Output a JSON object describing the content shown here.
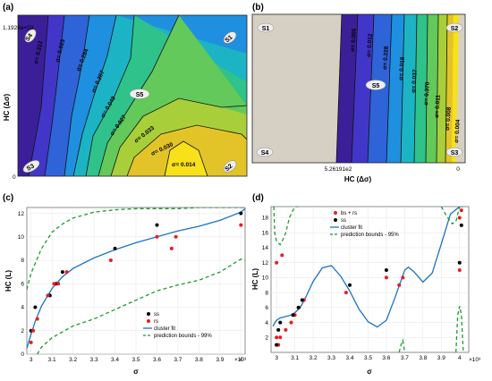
{
  "chart_data": [
    {
      "panel": "(a)",
      "type": "contour",
      "xlabel": "",
      "ylabel": "HC (Δσ)",
      "y_ticks": [
        "1.1924e+03",
        "0"
      ],
      "contour_labels": [
        "σ= 0.312",
        "σ= 0.023",
        "σ= 0.284",
        "σ= 0.207",
        "σ= 0.049",
        "σ= 0.027",
        "σ= 0.033",
        "σ= 0.030",
        "σ= 0.014"
      ],
      "state_labels": [
        "S4",
        "S1",
        "S5",
        "S3",
        "S2"
      ],
      "colors": [
        "#3b1f99",
        "#4236c8",
        "#2f63d8",
        "#1f8fe0",
        "#1cb4c4",
        "#2fc28a",
        "#62c95a",
        "#a8cf3a",
        "#e3c428",
        "#f9e11a"
      ]
    },
    {
      "panel": "(b)",
      "type": "contour",
      "xlabel": "HC (Δσ)",
      "ylabel": "",
      "x_ticks": [
        "5.26191e2",
        "0"
      ],
      "contour_labels": [
        "σ= 0.005",
        "σ= 0.012",
        "σ= 0.228",
        "σ= 0.018",
        "σ= 0.037",
        "σ= 0.370",
        "σ= 0.011",
        "σ= 0.008",
        "σ= 0.004"
      ],
      "state_labels": [
        "S1",
        "S2",
        "S5",
        "S4",
        "S3"
      ],
      "colors": [
        "#3b1f99",
        "#4236c8",
        "#2f63d8",
        "#1f8fe0",
        "#1cb4c4",
        "#2fc28a",
        "#62c95a",
        "#a8cf3a",
        "#e3c428",
        "#f9e11a"
      ]
    },
    {
      "panel": "(c)",
      "type": "scatter",
      "xlabel": "σ",
      "ylabel": "HC (L)",
      "x_exponent": "×10³",
      "xlim": [
        2.98,
        4.02
      ],
      "ylim": [
        0,
        12.5
      ],
      "x_ticks": [
        3,
        3.1,
        3.2,
        3.3,
        3.4,
        3.5,
        3.6,
        3.7,
        3.8,
        3.9,
        4
      ],
      "y_ticks": [
        0,
        2,
        4,
        6,
        8,
        10,
        12
      ],
      "legend": {
        "placement": "bottom-right",
        "entries": [
          "ss",
          "rs",
          "cluster fit",
          "prediction bounds - 99%"
        ]
      },
      "series": [
        {
          "name": "ss",
          "marker": "dot",
          "color": "#000000",
          "x": [
            3.0,
            3.02,
            3.09,
            3.12,
            3.15,
            3.4,
            3.6,
            4.0
          ],
          "y": [
            2,
            4,
            5,
            6,
            7,
            9,
            11,
            12
          ]
        },
        {
          "name": "rs",
          "marker": "dot",
          "color": "#e81e1e",
          "x": [
            3.0,
            3.01,
            3.03,
            3.08,
            3.11,
            3.13,
            3.17,
            3.38,
            3.6,
            3.67,
            3.69,
            4.0
          ],
          "y": [
            1,
            2,
            3,
            5,
            6,
            6,
            7,
            8,
            10,
            9,
            10,
            11
          ]
        },
        {
          "name": "cluster fit",
          "style": "line",
          "color": "#1a73c8",
          "x": [
            2.98,
            3.0,
            3.02,
            3.05,
            3.1,
            3.15,
            3.2,
            3.3,
            3.4,
            3.5,
            3.6,
            3.7,
            3.8,
            3.9,
            4.0,
            4.02
          ],
          "y": [
            0.5,
            1.7,
            2.8,
            4.1,
            5.6,
            6.6,
            7.3,
            8.2,
            8.9,
            9.5,
            10.0,
            10.5,
            10.9,
            11.4,
            12.1,
            12.4
          ]
        },
        {
          "name": "prediction bounds - 99%",
          "style": "dashed",
          "color": "#1e9a2e",
          "x": [
            2.98,
            3.0,
            3.05,
            3.1,
            3.15,
            3.2,
            3.3,
            3.4,
            3.5,
            3.6,
            3.7,
            3.8,
            3.9,
            4.0,
            4.02
          ],
          "y": [
            5.5,
            6.9,
            9.0,
            10.4,
            11.1,
            11.6,
            12.1,
            12.3,
            12.4,
            12.4,
            12.4,
            12.5,
            12.5,
            12.5,
            12.5
          ]
        },
        {
          "name": "prediction bounds - 99% (lower)",
          "style": "dashed",
          "color": "#1e9a2e",
          "x": [
            3.03,
            3.05,
            3.1,
            3.2,
            3.3,
            3.4,
            3.5,
            3.6,
            3.7,
            3.8,
            3.9,
            4.0,
            4.02
          ],
          "y": [
            0,
            0.6,
            1.4,
            2.4,
            3.0,
            3.8,
            4.6,
            5.4,
            5.9,
            6.3,
            7.0,
            8.1,
            8.0
          ]
        }
      ]
    },
    {
      "panel": "(d)",
      "type": "scatter",
      "xlabel": "σ",
      "ylabel": "HC (L)",
      "x_exponent": "×10³",
      "xlim": [
        2.97,
        4.05
      ],
      "ylim": [
        0,
        19.5
      ],
      "x_ticks": [
        3,
        3.1,
        3.2,
        3.3,
        3.4,
        3.5,
        3.6,
        3.7,
        3.8,
        3.9,
        4
      ],
      "y_ticks": [
        2,
        4,
        6,
        8,
        10,
        12,
        14,
        16,
        18
      ],
      "legend": {
        "placement": "top-left",
        "entries": [
          "bs + rs",
          "ss",
          "cluster fit",
          "prediction bounds - 95%"
        ]
      },
      "series": [
        {
          "name": "bs + rs",
          "marker": "dot",
          "color": "#e81e1e",
          "x": [
            3.0,
            3.0,
            3.01,
            3.02,
            3.03,
            3.05,
            3.08,
            3.1,
            3.12,
            3.15,
            3.38,
            3.6,
            3.67,
            3.69,
            4.0,
            4.0,
            4.01
          ],
          "y": [
            12,
            2,
            1,
            2,
            13,
            3,
            4,
            5,
            6,
            7,
            8,
            10,
            9,
            10,
            11,
            18,
            19
          ]
        },
        {
          "name": "ss",
          "marker": "dot",
          "color": "#000000",
          "x": [
            3.0,
            3.01,
            3.02,
            3.09,
            3.12,
            3.14,
            3.4,
            3.6,
            4.0,
            4.01
          ],
          "y": [
            1,
            3,
            4,
            5,
            6,
            7,
            9,
            11,
            12,
            17
          ]
        },
        {
          "name": "cluster fit",
          "style": "line",
          "color": "#1a73c8",
          "x": [
            2.98,
            3.0,
            3.02,
            3.05,
            3.08,
            3.1,
            3.13,
            3.16,
            3.2,
            3.25,
            3.3,
            3.35,
            3.4,
            3.45,
            3.5,
            3.55,
            3.6,
            3.65,
            3.7,
            3.72,
            3.75,
            3.8,
            3.85,
            3.9,
            3.95,
            4.0,
            4.02
          ],
          "y": [
            3.5,
            4.3,
            4.6,
            4.8,
            5.0,
            5.3,
            6.0,
            7.4,
            9.5,
            11.3,
            11.6,
            10.2,
            8.2,
            5.8,
            4.1,
            3.4,
            4.3,
            7.5,
            11.0,
            11.4,
            10.8,
            9.4,
            10.6,
            14.5,
            18.5,
            19.5,
            19.5
          ]
        },
        {
          "name": "prediction bounds - 95%",
          "style": "dashed",
          "color": "#1e9a2e",
          "x": [
            2.985,
            2.99,
            3.0,
            3.02,
            3.03,
            3.05,
            3.07,
            3.1,
            3.12
          ],
          "y": [
            19.5,
            16.0,
            14.9,
            14.4,
            14.8,
            16.0,
            18.0,
            19.5,
            19.5
          ]
        },
        {
          "name": "prediction bounds - 95% (right)",
          "style": "dashed",
          "color": "#1e9a2e",
          "x": [
            3.9,
            3.93,
            3.96,
            3.98,
            3.99,
            4.0,
            4.02
          ],
          "y": [
            19.5,
            18.2,
            17.2,
            17.5,
            18.5,
            19.5,
            19.5
          ]
        },
        {
          "name": "prediction bounds - 95% (lower)",
          "style": "dashed",
          "color": "#1e9a2e",
          "x": [
            3.67,
            3.68,
            3.69,
            3.7
          ],
          "y": [
            0,
            1.0,
            1.6,
            0
          ]
        },
        {
          "name": "prediction bounds - 95% (lower right)",
          "style": "dashed",
          "color": "#1e9a2e",
          "x": [
            3.98,
            3.99,
            4.0,
            4.01,
            4.02
          ],
          "y": [
            0,
            5.0,
            6.2,
            5.0,
            0
          ]
        }
      ]
    }
  ]
}
